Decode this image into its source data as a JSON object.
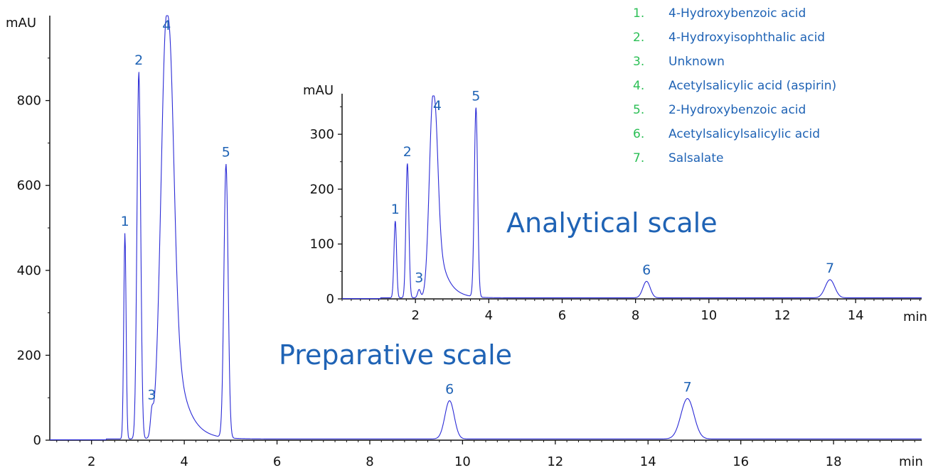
{
  "colors": {
    "trace": "#2b2bd6",
    "label_blue": "#1f63b5",
    "legend_green": "#2bbf55",
    "axis": "#111111"
  },
  "legend": [
    {
      "num": "1.",
      "name": "4-Hydroxybenzoic acid"
    },
    {
      "num": "2.",
      "name": "4-Hydroxyisophthalic acid"
    },
    {
      "num": "3.",
      "name": "Unknown"
    },
    {
      "num": "4.",
      "name": "Acetylsalicylic acid (aspirin)"
    },
    {
      "num": "5.",
      "name": "2-Hydroxybenzoic acid"
    },
    {
      "num": "6.",
      "name": "Acetylsalicylsalicylic acid"
    },
    {
      "num": "7.",
      "name": "Salsalate"
    }
  ],
  "chart_data": [
    {
      "type": "line",
      "title": "Preparative scale",
      "xlabel": "min",
      "ylabel": "mAU",
      "xlim": [
        1.1,
        19.9
      ],
      "ylim": [
        0,
        1000
      ],
      "xticks": [
        2,
        4,
        6,
        8,
        10,
        12,
        14,
        16,
        18
      ],
      "yticks": [
        0,
        200,
        400,
        600,
        800
      ],
      "baseline": 3,
      "peaks": [
        {
          "label": "1",
          "x": 2.72,
          "y": 485,
          "width": 0.025
        },
        {
          "label": "2",
          "x": 3.02,
          "y": 865,
          "width": 0.04
        },
        {
          "label": "3",
          "x": 3.3,
          "y": 48,
          "width": 0.03
        },
        {
          "label": "4",
          "x": 3.62,
          "y": 1000,
          "width": 0.12,
          "note": "off-scale"
        },
        {
          "label": "5",
          "x": 4.9,
          "y": 645,
          "width": 0.045
        },
        {
          "label": "6",
          "x": 9.72,
          "y": 90,
          "width": 0.1
        },
        {
          "label": "7",
          "x": 14.85,
          "y": 95,
          "width": 0.14
        }
      ]
    },
    {
      "type": "line",
      "title": "Analytical scale",
      "xlabel": "min",
      "ylabel": "mAU",
      "xlim": [
        0.0,
        15.8
      ],
      "ylim": [
        0,
        370
      ],
      "xticks": [
        2,
        4,
        6,
        8,
        10,
        12,
        14
      ],
      "yticks": [
        0,
        100,
        200,
        300
      ],
      "baseline": 2,
      "peaks": [
        {
          "label": "1",
          "x": 1.45,
          "y": 140,
          "width": 0.035
        },
        {
          "label": "2",
          "x": 1.78,
          "y": 245,
          "width": 0.04
        },
        {
          "label": "3",
          "x": 2.1,
          "y": 15,
          "width": 0.04
        },
        {
          "label": "4",
          "x": 2.48,
          "y": 370,
          "width": 0.1,
          "note": "off-scale"
        },
        {
          "label": "5",
          "x": 3.65,
          "y": 345,
          "width": 0.045
        },
        {
          "label": "6",
          "x": 8.3,
          "y": 30,
          "width": 0.1
        },
        {
          "label": "7",
          "x": 13.3,
          "y": 33,
          "width": 0.13
        }
      ]
    }
  ]
}
